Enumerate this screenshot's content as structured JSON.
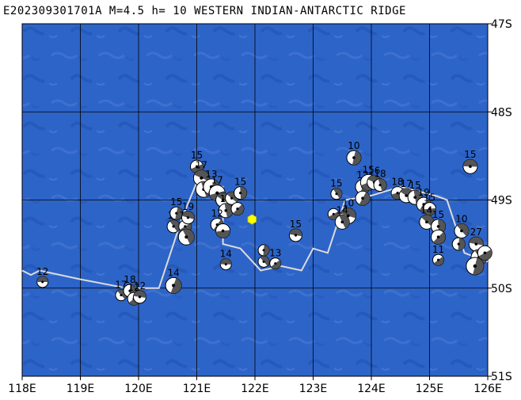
{
  "title": "E202309301701A M=4.5 h= 10 WESTERN INDIAN-ANTARCTIC RIDGE",
  "axes": {
    "lon_labels": [
      "118E",
      "119E",
      "120E",
      "121E",
      "122E",
      "123E",
      "124E",
      "125E",
      "126E"
    ],
    "lat_labels": [
      "47S",
      "48S",
      "49S",
      "50S",
      "51S"
    ],
    "lon_range": [
      118,
      126
    ],
    "lat_range": [
      -47,
      -51
    ]
  },
  "colors": {
    "ocean": "#2d64c8",
    "ridge_line": "#dcdcdc",
    "event_star": "#ffff00"
  },
  "ridge_path": [
    [
      118.0,
      -49.8
    ],
    [
      118.15,
      -49.85
    ],
    [
      118.3,
      -49.8
    ],
    [
      119.0,
      -49.9
    ],
    [
      119.8,
      -50.0
    ],
    [
      120.2,
      -50.0
    ],
    [
      120.35,
      -50.0
    ],
    [
      120.75,
      -49.2
    ],
    [
      121.0,
      -48.8
    ],
    [
      121.45,
      -48.85
    ],
    [
      121.45,
      -49.5
    ],
    [
      121.75,
      -49.55
    ],
    [
      122.1,
      -49.8
    ],
    [
      122.45,
      -49.75
    ],
    [
      122.8,
      -49.8
    ],
    [
      123.0,
      -49.55
    ],
    [
      123.25,
      -49.6
    ],
    [
      123.55,
      -49.0
    ],
    [
      124.0,
      -48.95
    ],
    [
      124.5,
      -48.85
    ],
    [
      125.1,
      -48.95
    ],
    [
      125.3,
      -49.0
    ],
    [
      125.6,
      -49.6
    ],
    [
      126.0,
      -49.7
    ]
  ],
  "event": {
    "lon": 121.95,
    "lat": -49.22
  },
  "mechanisms": [
    {
      "lon": 118.35,
      "lat": -49.93,
      "label": "12",
      "r": 7
    },
    {
      "lon": 119.7,
      "lat": -50.08,
      "label": "17",
      "r": 7
    },
    {
      "lon": 119.85,
      "lat": -50.03,
      "label": "18",
      "r": 8
    },
    {
      "lon": 119.92,
      "lat": -50.12,
      "label": "12",
      "r": 8
    },
    {
      "lon": 120.02,
      "lat": -50.1,
      "label": "12",
      "r": 8
    },
    {
      "lon": 120.6,
      "lat": -49.3,
      "label": "15",
      "r": 8
    },
    {
      "lon": 120.65,
      "lat": -49.15,
      "label": "15",
      "r": 8
    },
    {
      "lon": 120.8,
      "lat": -49.3,
      "label": "10",
      "r": 8
    },
    {
      "lon": 120.85,
      "lat": -49.2,
      "label": "19",
      "r": 8
    },
    {
      "lon": 120.82,
      "lat": -49.42,
      "label": "",
      "r": 10
    },
    {
      "lon": 120.6,
      "lat": -49.97,
      "label": "14",
      "r": 10
    },
    {
      "lon": 121.0,
      "lat": -48.62,
      "label": "15",
      "r": 8
    },
    {
      "lon": 121.08,
      "lat": -48.75,
      "label": "17",
      "r": 10
    },
    {
      "lon": 121.12,
      "lat": -48.88,
      "label": "",
      "r": 10
    },
    {
      "lon": 121.25,
      "lat": -48.85,
      "label": "13",
      "r": 10
    },
    {
      "lon": 121.35,
      "lat": -48.92,
      "label": "17",
      "r": 10
    },
    {
      "lon": 121.45,
      "lat": -49.0,
      "label": "",
      "r": 9
    },
    {
      "lon": 121.5,
      "lat": -49.12,
      "label": "15",
      "r": 9
    },
    {
      "lon": 121.35,
      "lat": -49.28,
      "label": "12",
      "r": 8
    },
    {
      "lon": 121.45,
      "lat": -49.35,
      "label": "",
      "r": 9
    },
    {
      "lon": 121.6,
      "lat": -48.98,
      "label": "",
      "r": 8
    },
    {
      "lon": 121.75,
      "lat": -48.92,
      "label": "15",
      "r": 8
    },
    {
      "lon": 121.7,
      "lat": -49.1,
      "label": "",
      "r": 8
    },
    {
      "lon": 121.5,
      "lat": -49.73,
      "label": "14",
      "r": 7
    },
    {
      "lon": 122.15,
      "lat": -49.7,
      "label": "15",
      "r": 7
    },
    {
      "lon": 122.15,
      "lat": -49.57,
      "label": "",
      "r": 7
    },
    {
      "lon": 122.35,
      "lat": -49.72,
      "label": "13",
      "r": 7
    },
    {
      "lon": 122.7,
      "lat": -49.4,
      "label": "15",
      "r": 8
    },
    {
      "lon": 123.4,
      "lat": -48.93,
      "label": "15",
      "r": 7
    },
    {
      "lon": 123.7,
      "lat": -48.52,
      "label": "10",
      "r": 9
    },
    {
      "lon": 123.35,
      "lat": -49.16,
      "label": "",
      "r": 7
    },
    {
      "lon": 123.6,
      "lat": -49.18,
      "label": "10",
      "r": 10
    },
    {
      "lon": 123.5,
      "lat": -49.25,
      "label": "14",
      "r": 9
    },
    {
      "lon": 123.85,
      "lat": -48.85,
      "label": "12",
      "r": 9
    },
    {
      "lon": 123.95,
      "lat": -48.8,
      "label": "15",
      "r": 10
    },
    {
      "lon": 124.05,
      "lat": -48.8,
      "label": "16",
      "r": 9
    },
    {
      "lon": 124.15,
      "lat": -48.83,
      "label": "18",
      "r": 8
    },
    {
      "lon": 123.85,
      "lat": -48.98,
      "label": "",
      "r": 9
    },
    {
      "lon": 124.45,
      "lat": -48.92,
      "label": "18",
      "r": 8
    },
    {
      "lon": 124.6,
      "lat": -48.95,
      "label": "17",
      "r": 9
    },
    {
      "lon": 124.75,
      "lat": -48.97,
      "label": "15",
      "r": 9
    },
    {
      "lon": 124.9,
      "lat": -49.05,
      "label": "19",
      "r": 9
    },
    {
      "lon": 125.0,
      "lat": -49.1,
      "label": "15",
      "r": 8
    },
    {
      "lon": 124.95,
      "lat": -49.25,
      "label": "14",
      "r": 9
    },
    {
      "lon": 125.15,
      "lat": -49.3,
      "label": "15",
      "r": 9
    },
    {
      "lon": 125.15,
      "lat": -49.42,
      "label": "",
      "r": 9
    },
    {
      "lon": 125.7,
      "lat": -48.62,
      "label": "15",
      "r": 9
    },
    {
      "lon": 125.55,
      "lat": -49.35,
      "label": "10",
      "r": 9
    },
    {
      "lon": 125.5,
      "lat": -49.5,
      "label": "",
      "r": 8
    },
    {
      "lon": 125.15,
      "lat": -49.68,
      "label": "11",
      "r": 7
    },
    {
      "lon": 125.8,
      "lat": -49.5,
      "label": "27",
      "r": 9
    },
    {
      "lon": 125.85,
      "lat": -49.65,
      "label": "",
      "r": 10
    },
    {
      "lon": 125.78,
      "lat": -49.75,
      "label": "",
      "r": 11
    },
    {
      "lon": 125.95,
      "lat": -49.6,
      "label": "",
      "r": 9
    }
  ]
}
